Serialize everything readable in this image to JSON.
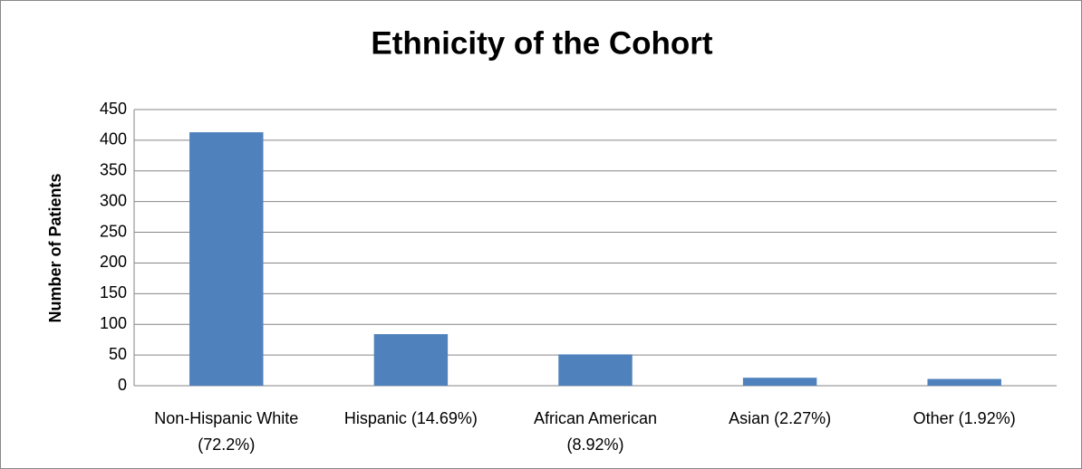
{
  "chart_data": {
    "type": "bar",
    "title": "Ethnicity of the Cohort",
    "y_label": "Number of Patients",
    "categories": [
      "Non-Hispanic White (72.2%)",
      "Hispanic (14.69%)",
      "African American (8.92%)",
      "Asian (2.27%)",
      "Other (1.92%)"
    ],
    "values": [
      413,
      84,
      51,
      13,
      11
    ],
    "color": "#4f81bd",
    "ylim": [
      0,
      450
    ],
    "yticks": [
      0,
      50,
      100,
      150,
      200,
      250,
      300,
      350,
      400,
      450
    ],
    "grid": true
  }
}
